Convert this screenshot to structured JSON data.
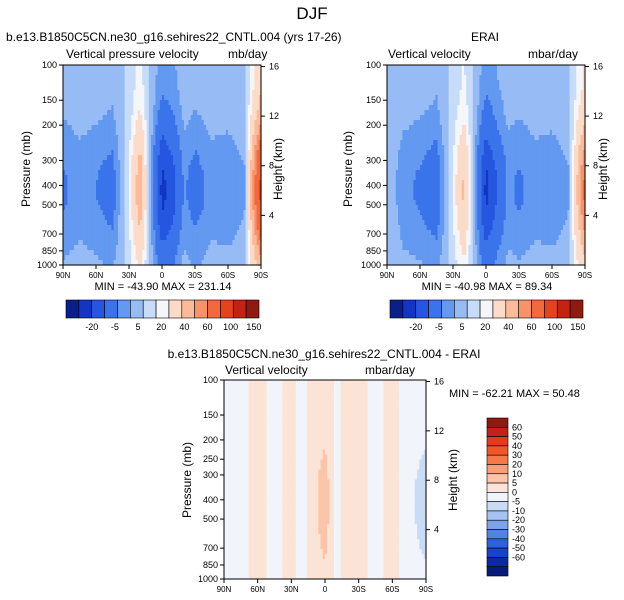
{
  "figure": {
    "title": "DJF"
  },
  "panels": [
    {
      "id": "model",
      "header": "b.e13.B1850C5CN.ne30_g16.sehires22_CNTL.004 (yrs 17-26)",
      "left_label": "Vertical pressure velocity",
      "right_label": "mb/day",
      "stats": "MIN = -43.90  MAX = 231.14"
    },
    {
      "id": "obs",
      "header": "ERAI",
      "left_label": "Vertical velocity",
      "right_label": "mbar/day",
      "stats": "MIN = -40.98  MAX =  89.34"
    },
    {
      "id": "diff",
      "header": "b.e13.B1850C5CN.ne30_g16.sehires22_CNTL.004 - ERAI",
      "left_label": "Vertical velocity",
      "right_label": "mbar/day",
      "stats": "MIN = -62.21  MAX =  50.48"
    }
  ],
  "axes": {
    "ylabel": "Pressure (mb)",
    "y2label": "Height (km)",
    "pressure_ticks": [
      "100",
      "150",
      "200",
      "250",
      "300",
      "400",
      "500",
      "700",
      "850",
      "1000"
    ],
    "pressure_values": [
      100,
      150,
      200,
      250,
      300,
      400,
      500,
      700,
      850,
      1000
    ],
    "pressure_ticks_small": [
      "100",
      "150",
      "200",
      "300",
      "400",
      "500",
      "700",
      "850",
      "1000"
    ],
    "pressure_values_small": [
      100,
      150,
      200,
      300,
      400,
      500,
      700,
      850,
      1000
    ],
    "height_ticks": [
      "16",
      "12",
      "8",
      "4"
    ],
    "height_values": [
      16,
      12,
      8,
      4
    ],
    "lat_ticks": [
      "90N",
      "60N",
      "30N",
      "0",
      "30S",
      "60S",
      "90S"
    ],
    "lat_values": [
      90,
      60,
      30,
      0,
      -30,
      -60,
      -90
    ]
  },
  "colorbars": {
    "main_labels": [
      "-20",
      "-5",
      "5",
      "20",
      "40",
      "60",
      "100",
      "150"
    ],
    "main_colors": [
      "#0a1f8a",
      "#1235c2",
      "#2456e0",
      "#3b74ea",
      "#6399f0",
      "#97bcf5",
      "#c7dcf8",
      "#f4f6fa",
      "#fcdcc8",
      "#fbbb9a",
      "#f89268",
      "#f26a3c",
      "#e3441d",
      "#c22412",
      "#8e1a10"
    ],
    "diff_labels": [
      "60",
      "50",
      "40",
      "30",
      "20",
      "10",
      "5",
      "0",
      "-5",
      "-10",
      "-20",
      "-30",
      "-40",
      "-50",
      "-60"
    ],
    "diff_colors": [
      "#8f1a12",
      "#c02414",
      "#e23a1c",
      "#f0582a",
      "#f67a48",
      "#fa9e78",
      "#fcc4a8",
      "#fbe4d6",
      "#f1f4fa",
      "#c9dcf6",
      "#a4c3f1",
      "#7ba5ea",
      "#4f84e3",
      "#2d62db",
      "#1a44c8",
      "#0d2aa2",
      "#061c78"
    ]
  },
  "chart_data": [
    {
      "type": "heatmap",
      "title": "b.e13.B1850C5CN.ne30_g16.sehires22_CNTL.004 (yrs 17-26)",
      "xlabel": "",
      "ylabel": "Pressure (mb)",
      "y2label": "Height (km)",
      "x_ticks": [
        "90N",
        "60N",
        "30N",
        "0",
        "30S",
        "60S",
        "90S"
      ],
      "y_ticks": [
        100,
        150,
        200,
        300,
        400,
        500,
        700,
        850,
        1000
      ],
      "xlim": [
        90,
        -90
      ],
      "ylim": [
        100,
        1000
      ],
      "y_scale": "log",
      "units": "mb/day",
      "min": -43.9,
      "max": 231.14,
      "columns": [
        {
          "lat": 90,
          "value": -10
        },
        {
          "lat": 75,
          "value": -7
        },
        {
          "lat": 60,
          "value": -9
        },
        {
          "lat": 45,
          "value": -12
        },
        {
          "lat": 30,
          "value": 5
        },
        {
          "lat": 20,
          "value": 25
        },
        {
          "lat": 10,
          "value": -5
        },
        {
          "lat": 0,
          "value": -30
        },
        {
          "lat": -10,
          "value": -22
        },
        {
          "lat": -20,
          "value": -8
        },
        {
          "lat": -30,
          "value": -12
        },
        {
          "lat": -45,
          "value": -7
        },
        {
          "lat": -60,
          "value": -8
        },
        {
          "lat": -75,
          "value": -5
        },
        {
          "lat": -90,
          "value": 60
        }
      ]
    },
    {
      "type": "heatmap",
      "title": "ERAI",
      "xlabel": "",
      "ylabel": "Pressure (mb)",
      "y2label": "Height (km)",
      "x_ticks": [
        "90N",
        "60N",
        "30N",
        "0",
        "30S",
        "60S",
        "90S"
      ],
      "y_ticks": [
        100,
        150,
        200,
        300,
        400,
        500,
        700,
        850,
        1000
      ],
      "xlim": [
        90,
        -90
      ],
      "ylim": [
        100,
        1000
      ],
      "y_scale": "log",
      "units": "mbar/day",
      "min": -40.98,
      "max": 89.34,
      "columns": [
        {
          "lat": 90,
          "value": 0
        },
        {
          "lat": 75,
          "value": -8
        },
        {
          "lat": 60,
          "value": -10
        },
        {
          "lat": 45,
          "value": -14
        },
        {
          "lat": 30,
          "value": 5
        },
        {
          "lat": 20,
          "value": 20
        },
        {
          "lat": 10,
          "value": -5
        },
        {
          "lat": 0,
          "value": -30
        },
        {
          "lat": -10,
          "value": -18
        },
        {
          "lat": -20,
          "value": -8
        },
        {
          "lat": -30,
          "value": -10
        },
        {
          "lat": -45,
          "value": -7
        },
        {
          "lat": -60,
          "value": -8
        },
        {
          "lat": -75,
          "value": -5
        },
        {
          "lat": -90,
          "value": 40
        }
      ]
    },
    {
      "type": "heatmap",
      "title": "b.e13.B1850C5CN.ne30_g16.sehires22_CNTL.004 - ERAI",
      "xlabel": "",
      "ylabel": "Pressure (mb)",
      "y2label": "Height (km)",
      "x_ticks": [
        "90N",
        "60N",
        "30N",
        "0",
        "30S",
        "60S",
        "90S"
      ],
      "y_ticks": [
        100,
        150,
        200,
        250,
        300,
        400,
        500,
        700,
        850,
        1000
      ],
      "xlim": [
        90,
        -90
      ],
      "ylim": [
        100,
        1000
      ],
      "y_scale": "log",
      "units": "mbar/day",
      "min": -62.21,
      "max": 50.48,
      "columns": [
        {
          "lat": 90,
          "value": -3
        },
        {
          "lat": 75,
          "value": -2
        },
        {
          "lat": 60,
          "value": 2
        },
        {
          "lat": 45,
          "value": -2
        },
        {
          "lat": 30,
          "value": 2
        },
        {
          "lat": 20,
          "value": -3
        },
        {
          "lat": 10,
          "value": 3
        },
        {
          "lat": 0,
          "value": 8
        },
        {
          "lat": -10,
          "value": -2
        },
        {
          "lat": -20,
          "value": 2
        },
        {
          "lat": -30,
          "value": 2
        },
        {
          "lat": -45,
          "value": -2
        },
        {
          "lat": -60,
          "value": 2
        },
        {
          "lat": -75,
          "value": -3
        },
        {
          "lat": -90,
          "value": -8
        }
      ]
    }
  ]
}
